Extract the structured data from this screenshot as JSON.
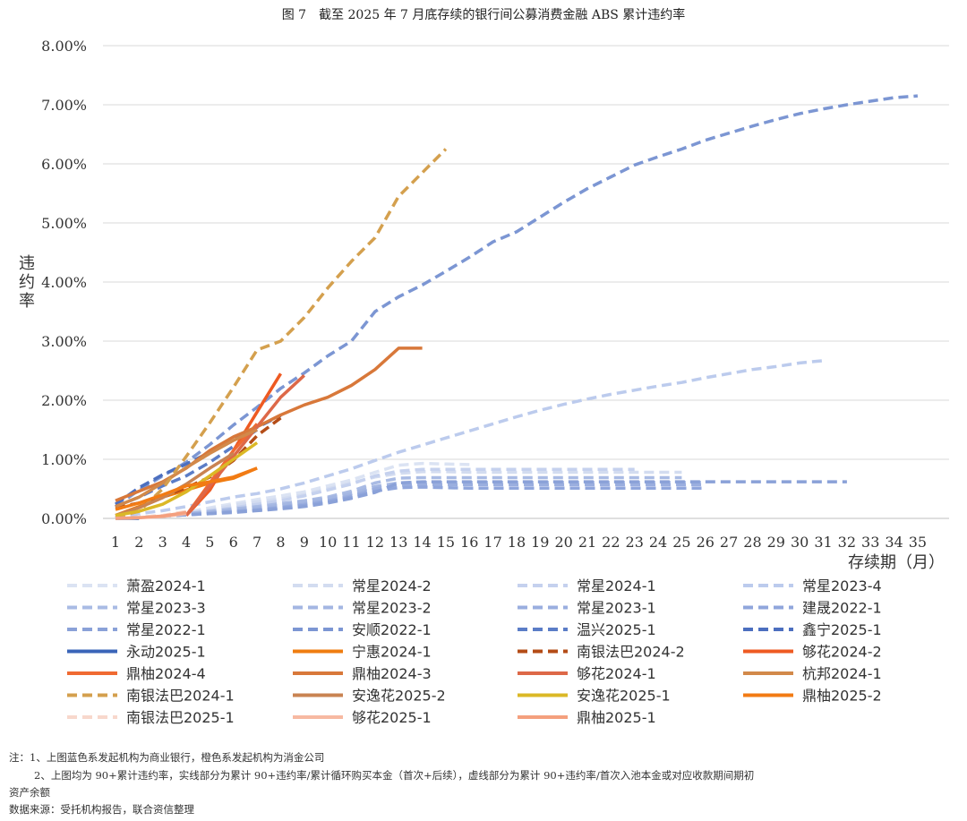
{
  "chart_data": {
    "type": "line",
    "title": "图 7　截至 2025 年 7 月底存续的银行间公募消费金融 ABS 累计违约率",
    "xlabel": "存续期（月）",
    "ylabel": "违约率",
    "ylim": [
      0,
      8
    ],
    "yticks": [
      "0.00%",
      "1.00%",
      "2.00%",
      "3.00%",
      "4.00%",
      "5.00%",
      "6.00%",
      "7.00%",
      "8.00%"
    ],
    "xticks": [
      "1",
      "2",
      "3",
      "4",
      "5",
      "6",
      "7",
      "8",
      "9",
      "10",
      "11",
      "12",
      "13",
      "14",
      "15",
      "16",
      "17",
      "18",
      "19",
      "20",
      "21",
      "22",
      "23",
      "24",
      "25",
      "26",
      "27",
      "28",
      "29",
      "30",
      "31",
      "32",
      "33",
      "34",
      "35"
    ],
    "grid": "horizontal",
    "legend_position": "bottom",
    "series": [
      {
        "name": "萧盈2024-1",
        "style": "dashed",
        "color": "#dbe3f3",
        "x": [
          1,
          2,
          3,
          4,
          5,
          6,
          7,
          8,
          9,
          10,
          11,
          12,
          13,
          14,
          15,
          16
        ],
        "values": [
          0.0,
          0.02,
          0.05,
          0.1,
          0.18,
          0.25,
          0.32,
          0.38,
          0.45,
          0.55,
          0.65,
          0.78,
          0.9,
          0.93,
          0.92,
          0.91
        ]
      },
      {
        "name": "常星2024-2",
        "style": "dashed",
        "color": "#d3dcf0",
        "x": [
          1,
          2,
          3,
          4,
          5,
          6,
          7,
          8,
          9,
          10,
          11,
          12,
          13,
          14,
          15,
          16,
          17,
          18,
          19,
          20,
          21,
          22,
          23,
          24,
          25
        ],
        "values": [
          0.0,
          0.02,
          0.05,
          0.1,
          0.15,
          0.22,
          0.28,
          0.33,
          0.4,
          0.5,
          0.6,
          0.7,
          0.76,
          0.79,
          0.79,
          0.78,
          0.78,
          0.78,
          0.78,
          0.78,
          0.78,
          0.78,
          0.78,
          0.78,
          0.78
        ]
      },
      {
        "name": "常星2024-1",
        "style": "dashed",
        "color": "#c5d1ee",
        "x": [
          1,
          2,
          3,
          4,
          5,
          6,
          7,
          8,
          9,
          10,
          11,
          12,
          13,
          14,
          15,
          16,
          17,
          18,
          19,
          20,
          21,
          22,
          23
        ],
        "values": [
          0.0,
          0.02,
          0.04,
          0.08,
          0.13,
          0.18,
          0.24,
          0.3,
          0.38,
          0.48,
          0.58,
          0.72,
          0.8,
          0.83,
          0.83,
          0.83,
          0.83,
          0.83,
          0.83,
          0.83,
          0.83,
          0.83,
          0.83
        ]
      },
      {
        "name": "常星2023-4",
        "style": "dashed",
        "color": "#bccbed",
        "x": [
          1,
          2,
          3,
          4,
          5,
          6,
          7,
          8,
          9,
          10,
          11,
          12,
          13,
          14,
          15,
          16,
          17,
          18,
          19,
          20,
          21,
          22,
          23,
          24,
          25,
          26,
          27,
          28,
          29,
          30,
          31
        ],
        "values": [
          0.0,
          0.08,
          0.13,
          0.2,
          0.28,
          0.36,
          0.42,
          0.5,
          0.6,
          0.72,
          0.84,
          0.98,
          1.12,
          1.24,
          1.36,
          1.48,
          1.6,
          1.72,
          1.83,
          1.93,
          2.02,
          2.1,
          2.17,
          2.24,
          2.3,
          2.38,
          2.45,
          2.52,
          2.57,
          2.63,
          2.67
        ]
      },
      {
        "name": "常星2023-3",
        "style": "dashed",
        "color": "#a9bbe4",
        "x": [
          1,
          2,
          3,
          4,
          5,
          6,
          7,
          8,
          9,
          10,
          11,
          12,
          13,
          14,
          15,
          16,
          17,
          18,
          19,
          20,
          21,
          22,
          23,
          24,
          25
        ],
        "values": [
          0.0,
          0.02,
          0.04,
          0.08,
          0.12,
          0.16,
          0.2,
          0.25,
          0.3,
          0.36,
          0.46,
          0.6,
          0.68,
          0.69,
          0.69,
          0.69,
          0.69,
          0.69,
          0.69,
          0.69,
          0.69,
          0.69,
          0.69,
          0.69,
          0.69
        ]
      },
      {
        "name": "常星2023-2",
        "style": "dashed",
        "color": "#a3b6e2",
        "x": [
          1,
          2,
          3,
          4,
          5,
          6,
          7,
          8,
          9,
          10,
          11,
          12,
          13,
          14,
          15,
          16,
          17,
          18,
          19,
          20,
          21,
          22,
          23,
          24,
          25,
          26
        ],
        "values": [
          0.0,
          0.02,
          0.04,
          0.07,
          0.1,
          0.14,
          0.18,
          0.22,
          0.28,
          0.34,
          0.42,
          0.54,
          0.6,
          0.61,
          0.61,
          0.61,
          0.61,
          0.61,
          0.61,
          0.61,
          0.61,
          0.61,
          0.61,
          0.61,
          0.61,
          0.61
        ]
      },
      {
        "name": "常星2023-1",
        "style": "dashed",
        "color": "#9aaedf",
        "x": [
          1,
          2,
          3,
          4,
          5,
          6,
          7,
          8,
          9,
          10,
          11,
          12,
          13,
          14,
          15,
          16,
          17,
          18,
          19,
          20,
          21,
          22,
          23,
          24,
          25,
          26
        ],
        "values": [
          0.0,
          0.02,
          0.04,
          0.06,
          0.09,
          0.12,
          0.15,
          0.19,
          0.24,
          0.3,
          0.38,
          0.5,
          0.56,
          0.57,
          0.57,
          0.57,
          0.57,
          0.57,
          0.57,
          0.57,
          0.57,
          0.57,
          0.57,
          0.57,
          0.57,
          0.57
        ]
      },
      {
        "name": "建晟2022-1",
        "style": "dashed",
        "color": "#90a6dc",
        "x": [
          1,
          2,
          3,
          4,
          5,
          6,
          7,
          8,
          9,
          10,
          11,
          12,
          13,
          14,
          15,
          16,
          17,
          18,
          19,
          20,
          21,
          22,
          23,
          24,
          25,
          26
        ],
        "values": [
          0.0,
          0.02,
          0.04,
          0.06,
          0.08,
          0.11,
          0.14,
          0.18,
          0.22,
          0.28,
          0.36,
          0.46,
          0.52,
          0.53,
          0.52,
          0.51,
          0.51,
          0.51,
          0.51,
          0.51,
          0.51,
          0.51,
          0.51,
          0.51,
          0.51,
          0.51
        ]
      },
      {
        "name": "常星2022-1",
        "style": "dashed",
        "color": "#8aa1d8",
        "x": [
          1,
          2,
          3,
          4,
          5,
          6,
          7,
          8,
          9,
          10,
          11,
          12,
          13,
          14,
          15,
          16,
          17,
          18,
          19,
          20,
          21,
          22,
          23,
          24,
          25,
          26,
          27,
          28,
          29,
          30,
          31,
          32
        ],
        "values": [
          0.0,
          0.02,
          0.04,
          0.06,
          0.08,
          0.1,
          0.13,
          0.16,
          0.2,
          0.26,
          0.34,
          0.44,
          0.6,
          0.62,
          0.62,
          0.62,
          0.62,
          0.62,
          0.62,
          0.62,
          0.62,
          0.62,
          0.62,
          0.62,
          0.62,
          0.62,
          0.62,
          0.62,
          0.62,
          0.62,
          0.62,
          0.62
        ]
      },
      {
        "name": "安顺2022-1",
        "style": "dashed",
        "color": "#7c96d3",
        "x": [
          1,
          2,
          3,
          4,
          5,
          6,
          7,
          8,
          9,
          10,
          11,
          12,
          13,
          14,
          15,
          16,
          17,
          18,
          19,
          20,
          21,
          22,
          23,
          24,
          25,
          26,
          27,
          28,
          29,
          30,
          31,
          32,
          33,
          34,
          35
        ],
        "values": [
          0.2,
          0.48,
          0.72,
          0.95,
          1.25,
          1.58,
          1.88,
          2.2,
          2.46,
          2.75,
          3.0,
          3.5,
          3.75,
          3.95,
          4.18,
          4.42,
          4.68,
          4.85,
          5.1,
          5.35,
          5.58,
          5.78,
          5.98,
          6.12,
          6.25,
          6.4,
          6.52,
          6.64,
          6.75,
          6.85,
          6.93,
          7.0,
          7.06,
          7.12,
          7.15
        ]
      },
      {
        "name": "温兴2025-1",
        "style": "dashed",
        "color": "#5b7dc7",
        "x": [
          1,
          2,
          3,
          4,
          5,
          6,
          7
        ],
        "values": [
          0.2,
          0.36,
          0.55,
          0.72,
          0.95,
          1.22,
          1.5
        ]
      },
      {
        "name": "鑫宁2025-1",
        "style": "dashed",
        "color": "#4c6fbf",
        "x": [
          1,
          2,
          3,
          4,
          5,
          6,
          7,
          8
        ],
        "values": [
          0.24,
          0.52,
          0.74,
          0.92,
          1.12,
          1.32,
          1.54,
          1.74
        ]
      },
      {
        "name": "永动2025-1",
        "style": "solid",
        "color": "#3a64b8",
        "x": [
          1,
          2
        ],
        "values": [
          0.0,
          0.0
        ]
      },
      {
        "name": "宁惠2024-1",
        "style": "solid",
        "color": "#ef7d10",
        "x": [
          1,
          2,
          3,
          4,
          5,
          6,
          7
        ],
        "values": [
          0.05,
          0.2,
          0.36,
          0.48,
          0.6,
          0.68,
          0.85
        ]
      },
      {
        "name": "南银法巴2024-2",
        "style": "dashed",
        "color": "#b44c17",
        "x": [
          1,
          2,
          3,
          4,
          5,
          6,
          7,
          8
        ],
        "values": [
          0.18,
          0.26,
          0.36,
          0.52,
          0.7,
          0.98,
          1.4,
          1.7
        ]
      },
      {
        "name": "够花2024-2",
        "style": "solid",
        "color": "#ee5a22",
        "x": [
          4,
          5,
          6,
          7,
          8
        ],
        "values": [
          0.05,
          0.48,
          1.15,
          1.8,
          2.45
        ]
      },
      {
        "name": "鼎柚2024-4",
        "style": "solid",
        "color": "#f06a32",
        "x": [
          4,
          5,
          6,
          7
        ],
        "values": [
          0.05,
          0.6,
          1.15,
          1.6
        ]
      },
      {
        "name": "鼎柚2024-3",
        "style": "solid",
        "color": "#d8783a",
        "x": [
          1,
          2,
          3,
          4,
          5,
          6,
          7,
          8,
          9,
          10,
          11,
          12,
          13,
          14
        ],
        "values": [
          0.3,
          0.46,
          0.62,
          0.85,
          1.15,
          1.38,
          1.55,
          1.75,
          1.92,
          2.05,
          2.25,
          2.52,
          2.88,
          2.88
        ]
      },
      {
        "name": "够花2024-1",
        "style": "solid",
        "color": "#dd6848",
        "x": [
          4,
          5,
          6,
          7,
          8,
          9
        ],
        "values": [
          0.05,
          0.55,
          1.05,
          1.55,
          2.05,
          2.42
        ]
      },
      {
        "name": "杭邦2024-1",
        "style": "solid",
        "color": "#d2894a",
        "x": [
          1,
          2,
          3,
          4,
          5,
          6,
          7
        ],
        "values": [
          0.2,
          0.36,
          0.6,
          0.86,
          1.1,
          1.32,
          1.5
        ]
      },
      {
        "name": "南银法巴2024-1",
        "style": "dashed",
        "color": "#d4a04e",
        "x": [
          1,
          2,
          3,
          4,
          5,
          6,
          7,
          8,
          9,
          10,
          11,
          12,
          13,
          14,
          15
        ],
        "values": [
          0.02,
          0.12,
          0.5,
          1.05,
          1.62,
          2.22,
          2.85,
          3.0,
          3.4,
          3.9,
          4.35,
          4.75,
          5.45,
          5.85,
          6.25
        ]
      },
      {
        "name": "安逸花2025-2",
        "style": "solid",
        "color": "#c98352",
        "x": [
          1,
          2,
          3,
          4,
          5,
          6
        ],
        "values": [
          0.05,
          0.18,
          0.35,
          0.58,
          0.85,
          1.1
        ]
      },
      {
        "name": "安逸花2025-1",
        "style": "solid",
        "color": "#dbb826",
        "x": [
          1,
          2,
          3,
          4,
          5,
          6,
          7
        ],
        "values": [
          0.05,
          0.12,
          0.24,
          0.45,
          0.72,
          1.0,
          1.28
        ]
      },
      {
        "name": "鼎柚2025-2",
        "style": "solid",
        "color": "#f27b14",
        "x": [
          1,
          2,
          3,
          4,
          5,
          6,
          7
        ],
        "values": [
          0.15,
          0.26,
          0.4,
          0.55,
          0.62,
          0.7,
          0.85
        ]
      },
      {
        "name": "南银法巴2025-1",
        "style": "dashed",
        "color": "#f8d8cc",
        "x": [
          1,
          2,
          3,
          4
        ],
        "values": [
          0.0,
          0.02,
          0.05,
          0.12
        ]
      },
      {
        "name": "够花2025-1",
        "style": "solid",
        "color": "#f7b9a2",
        "x": [
          1,
          2,
          3,
          4
        ],
        "values": [
          0.0,
          0.01,
          0.03,
          0.08
        ]
      },
      {
        "name": "鼎柚2025-1",
        "style": "solid",
        "color": "#f4a07e",
        "x": [
          1,
          2,
          3,
          4
        ],
        "values": [
          0.0,
          0.01,
          0.04,
          0.1
        ]
      }
    ]
  },
  "notes": {
    "line1": "注：1、上图蓝色系发起机构为商业银行，橙色系发起机构为消金公司",
    "line2": "2、上图均为 90+累计违约率，实线部分为累计 90+违约率/累计循环购买本金（首次+后续），虚线部分为累计 90+违约率/首次入池本金或对应收款期间期初",
    "line3": "资产余额",
    "source": "数据来源：受托机构报告，联合资信整理"
  }
}
